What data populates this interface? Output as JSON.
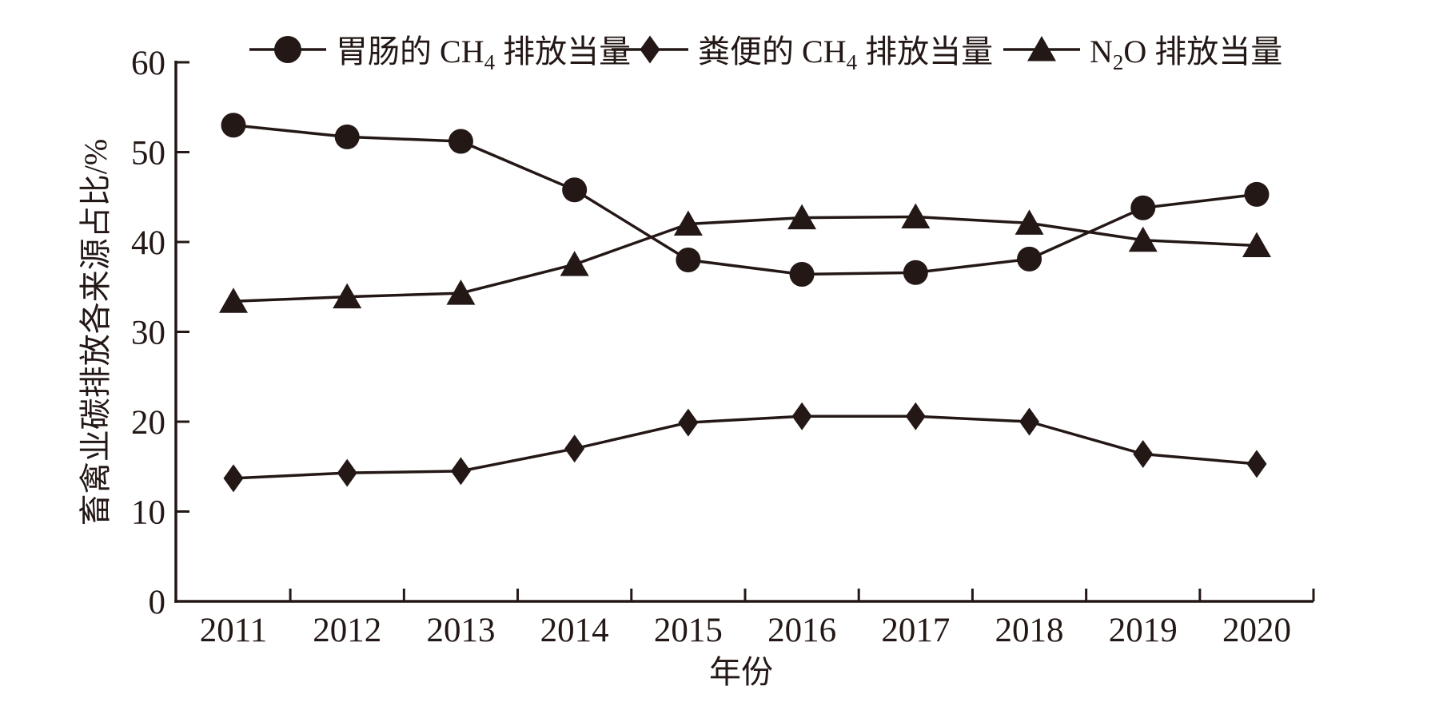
{
  "chart_data": {
    "type": "line",
    "title": "",
    "xlabel": "年份",
    "ylabel": "畜禽业碳排放各来源占比/%",
    "x": [
      2011,
      2012,
      2013,
      2014,
      2015,
      2016,
      2017,
      2018,
      2019,
      2020
    ],
    "ylim": [
      0,
      60
    ],
    "yticks": [
      0,
      10,
      20,
      30,
      40,
      50,
      60
    ],
    "grid": false,
    "legend_position": "top",
    "ink_color": "#231815",
    "background_color": "#ffffff",
    "series": [
      {
        "name": "胃肠的 CH₄ 排放当量",
        "marker": "circle",
        "values": [
          53.0,
          51.7,
          51.2,
          45.8,
          38.0,
          36.4,
          36.6,
          38.1,
          43.8,
          45.3
        ]
      },
      {
        "name": "粪便的 CH₄ 排放当量",
        "marker": "diamond",
        "values": [
          13.7,
          14.3,
          14.5,
          17.0,
          19.9,
          20.6,
          20.6,
          20.0,
          16.4,
          15.3
        ]
      },
      {
        "name": "N₂O 排放当量",
        "marker": "triangle",
        "values": [
          33.4,
          33.9,
          34.3,
          37.5,
          42.0,
          42.7,
          42.8,
          42.1,
          40.2,
          39.6
        ]
      }
    ]
  }
}
